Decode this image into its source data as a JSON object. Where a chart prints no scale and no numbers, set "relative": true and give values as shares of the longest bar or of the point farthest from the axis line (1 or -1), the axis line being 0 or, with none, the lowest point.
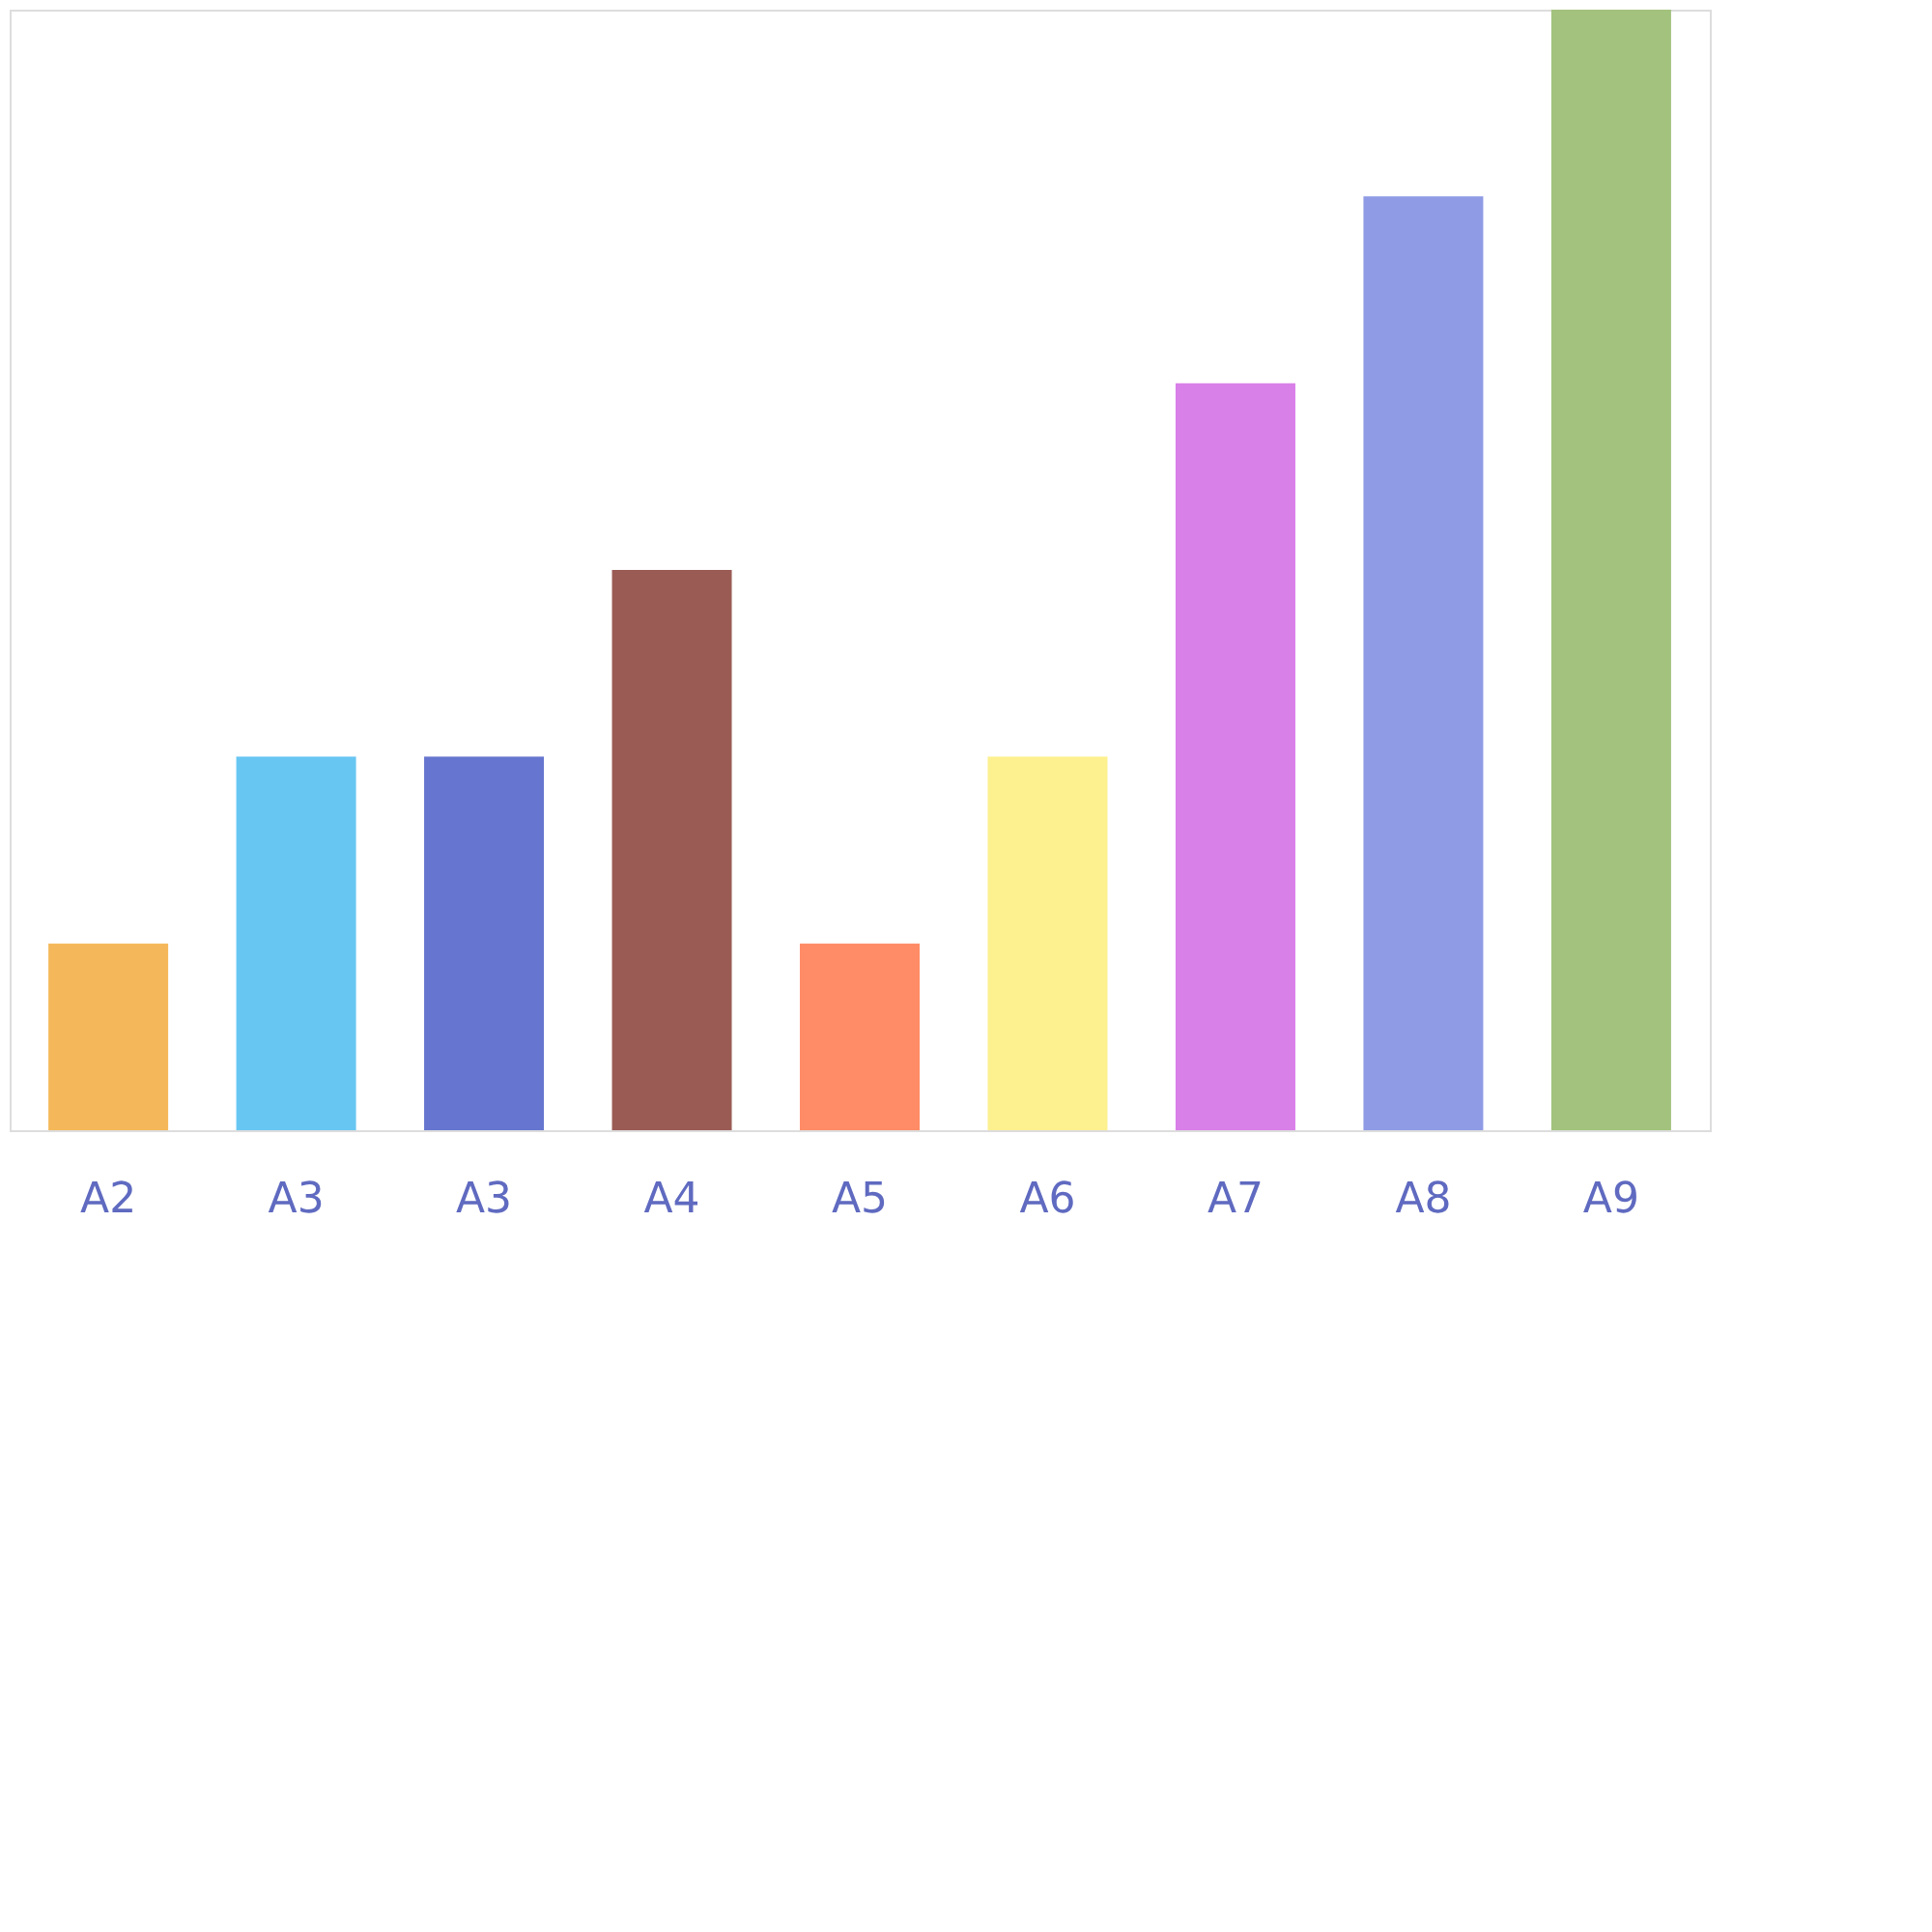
{
  "chart_data": {
    "type": "bar",
    "relative": true,
    "categories": [
      "A2",
      "A3",
      "A3",
      "A4",
      "A5",
      "A6",
      "A7",
      "A8",
      "A9"
    ],
    "values": [
      0.1667,
      0.3333,
      0.3333,
      0.5,
      0.1667,
      0.3333,
      0.6667,
      0.8333,
      1
    ],
    "colors": [
      "#f4b85a",
      "#68c6f2",
      "#6675cf",
      "#9a5b55",
      "#ff8c66",
      "#fdf08f",
      "#d97fe8",
      "#8f9be4",
      "#a2c27d"
    ]
  }
}
